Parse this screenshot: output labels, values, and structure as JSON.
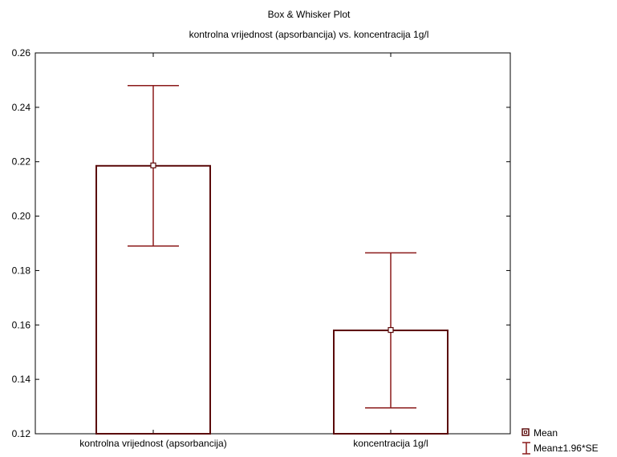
{
  "chart_data": {
    "type": "box",
    "title": "Box & Whisker Plot",
    "subtitle": "kontrolna vrijednost (apsorbancija) vs. koncentracija 1g/l",
    "xlabel": "",
    "ylabel": "",
    "ylim": [
      0.12,
      0.26
    ],
    "yticks": [
      "0.12",
      "0.14",
      "0.16",
      "0.18",
      "0.20",
      "0.22",
      "0.24",
      "0.26"
    ],
    "grid": false,
    "legend_position": "bottom-right",
    "categories": [
      "kontrolna vrijednost (apsorbancija)",
      "koncentracija 1g/l"
    ],
    "series": [
      {
        "category": "kontrolna vrijednost (apsorbancija)",
        "mean": 0.2185,
        "lower": 0.189,
        "upper": 0.248
      },
      {
        "category": "koncentracija 1g/l",
        "mean": 0.158,
        "lower": 0.1295,
        "upper": 0.1865
      }
    ],
    "legend": [
      {
        "label": "Mean",
        "icon": "mean-square-icon"
      },
      {
        "label": "Mean±1.96*SE",
        "icon": "error-bar-icon"
      }
    ],
    "colors": {
      "box": "#5a0a0a",
      "whisker": "#8b1a1a",
      "axis": "#000000"
    }
  }
}
